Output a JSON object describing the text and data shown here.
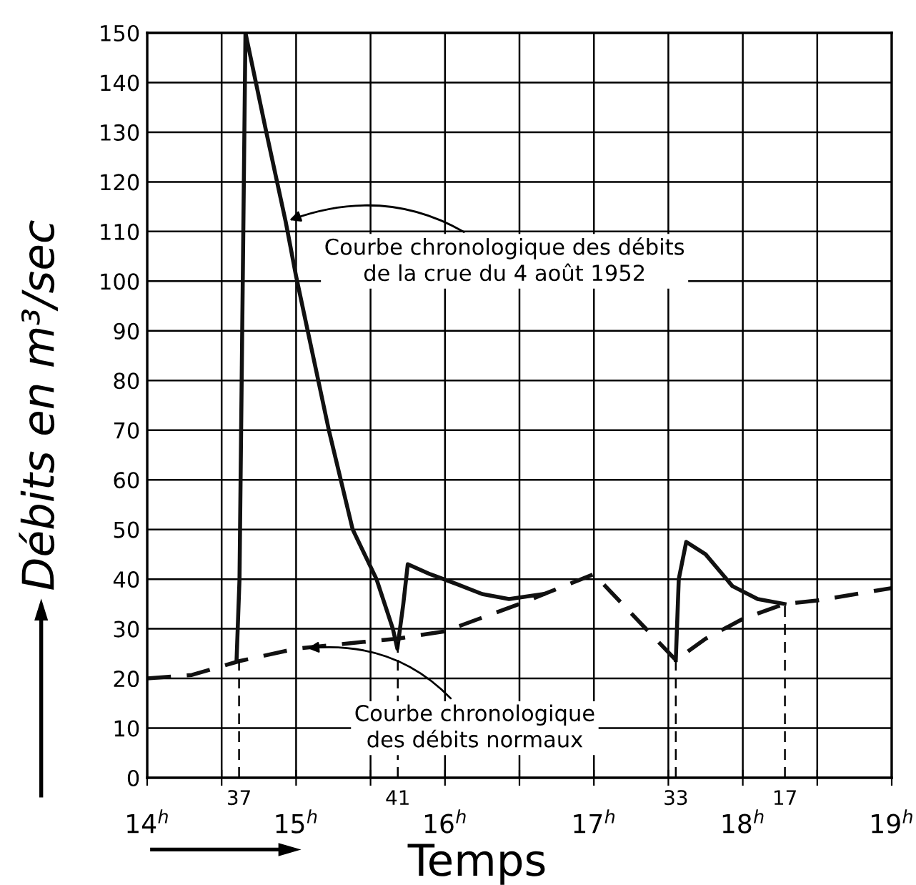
{
  "chart_data": {
    "type": "line",
    "xlabel": "Temps",
    "ylabel": "Débits en m³/sec",
    "x": [
      14.6,
      14.62,
      14.66,
      14.8,
      14.93,
      15.0,
      15.22,
      15.3,
      15.38,
      15.54,
      15.65,
      15.68,
      15.72,
      15.75,
      15.9,
      16.08,
      16.25,
      16.43,
      16.66,
      17.0,
      17.55,
      17.57,
      17.62,
      17.75,
      17.93,
      18.1,
      18.28
    ],
    "series": [
      {
        "color": "#111111",
        "line_style": "solid",
        "values": [
          23.5,
          40,
          150,
          130,
          112,
          101,
          70,
          60,
          50,
          40,
          30,
          26,
          35,
          43,
          41,
          39,
          37,
          36,
          37,
          null,
          23.7,
          40,
          47.5,
          45,
          38.6,
          36,
          35
        ]
      },
      {
        "color": "#111111",
        "line_style": "dashed",
        "x": [
          14.0,
          14.3,
          14.62,
          15.0,
          15.5,
          15.68,
          16.0,
          16.5,
          17.0,
          17.55,
          17.75,
          18.0,
          18.28,
          18.5,
          19.0
        ],
        "values": [
          20,
          20.7,
          23.5,
          26,
          27.5,
          28,
          29.5,
          35,
          41,
          23.7,
          28,
          32,
          35,
          35.7,
          38.2
        ]
      }
    ],
    "xlim": [
      14,
      19
    ],
    "ylim": [
      0,
      150
    ],
    "xticks": [
      {
        "value": 14,
        "label": "14$^{h}$"
      },
      {
        "value": 14.5,
        "label": null
      },
      {
        "value": 15,
        "label": "15$^{h}$"
      },
      {
        "value": 15.5,
        "label": null
      },
      {
        "value": 16,
        "label": "16$^{h}$"
      },
      {
        "value": 16.5,
        "label": null
      },
      {
        "value": 17,
        "label": "17$^{h}$"
      },
      {
        "value": 17.5,
        "label": null
      },
      {
        "value": 18,
        "label": "18$^{h}$"
      },
      {
        "value": 18.5,
        "label": null
      },
      {
        "value": 19,
        "label": "19$^{h}$"
      }
    ],
    "yticks": [
      0,
      10,
      20,
      30,
      40,
      50,
      60,
      70,
      80,
      90,
      100,
      110,
      120,
      130,
      140,
      150
    ],
    "grid": true,
    "ref_lines": [
      {
        "axis": "x",
        "value": 14.617,
        "line_style": "dashed"
      },
      {
        "axis": "x",
        "value": 15.683,
        "line_style": "dashed"
      },
      {
        "axis": "x",
        "value": 17.55,
        "line_style": "dashed"
      },
      {
        "axis": "x",
        "value": 18.283,
        "line_style": "dashed"
      }
    ],
    "annotations": [
      {
        "text": "Courbe chronologique des débits\nde la crue du 4 août 1952",
        "x": 14.93,
        "y": 112
      },
      {
        "text": "Courbe chronologique\ndes débits normaux",
        "x": 15.05,
        "y": 26
      },
      {
        "text": "37",
        "x": 14.617,
        "y": 0
      },
      {
        "text": "41",
        "x": 15.683,
        "y": 0
      },
      {
        "text": "33",
        "x": 17.55,
        "y": 0
      },
      {
        "text": "17",
        "x": 18.283,
        "y": 0
      }
    ]
  }
}
